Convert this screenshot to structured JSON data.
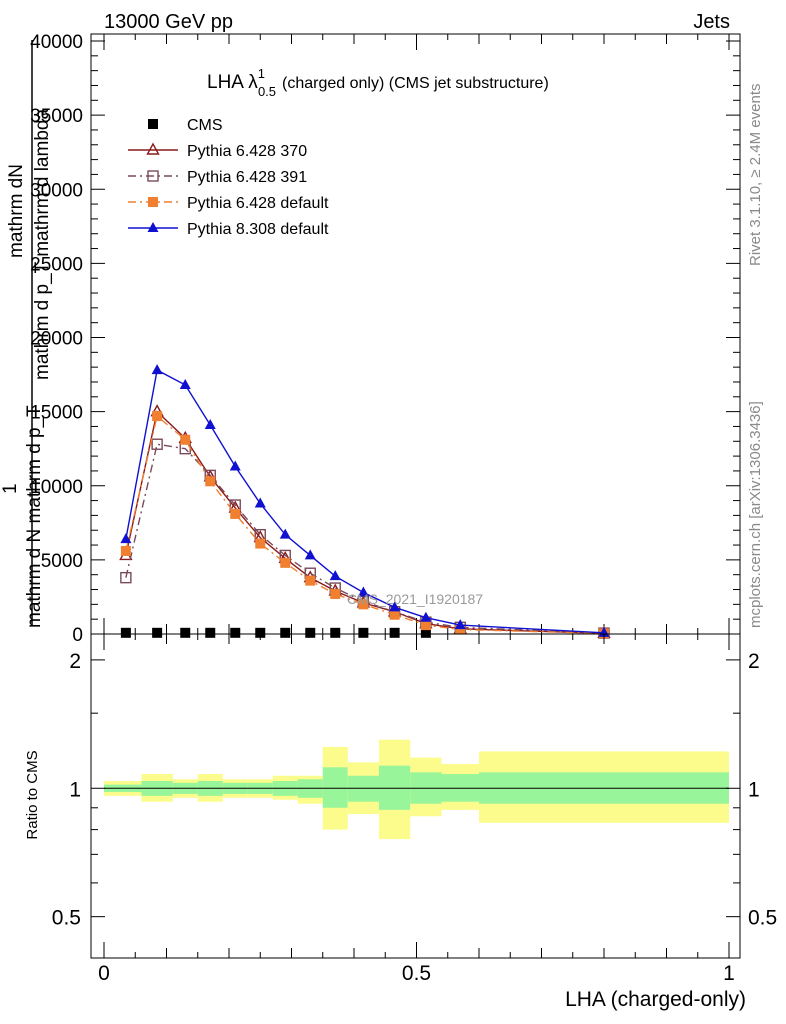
{
  "header": {
    "left": "13000 GeV pp",
    "right": "Jets"
  },
  "side_notes": {
    "rivet": "Rivet 3.1.10, ≥ 2.4M events",
    "mcplots": "mcplots.cern.ch [arXiv:1306.3436]"
  },
  "watermark": "CMS_2021_I1920187",
  "chart_data": [
    {
      "type": "line",
      "title": "LHA λ",
      "title_superscript": "1",
      "title_subscript": "0.5",
      "title_suffix": "(charged only) (CMS jet substructure)",
      "ylabel_garbled": [
        "mathrm dN",
        "mathrm d p_T mathrm d lambda",
        "1",
        "mathrm d N mathrm d p_T"
      ],
      "ylim": [
        0,
        40000
      ],
      "yticks": [
        "0",
        "5000",
        "10000",
        "15000",
        "20000",
        "25000",
        "30000",
        "35000",
        "40000"
      ],
      "ytick_values": [
        0,
        5000,
        10000,
        15000,
        20000,
        25000,
        30000,
        35000,
        40000
      ],
      "xlim": [
        0,
        1
      ],
      "legend_position": "top-left",
      "series": [
        {
          "name": "CMS",
          "color": "#000000",
          "marker": "square-filled",
          "line": "none",
          "x": [
            0.035,
            0.085,
            0.13,
            0.17,
            0.21,
            0.25,
            0.29,
            0.33,
            0.37,
            0.415,
            0.465,
            0.515
          ],
          "values": [
            80,
            80,
            80,
            80,
            80,
            80,
            80,
            80,
            80,
            80,
            80,
            80
          ]
        },
        {
          "name": "Pythia 6.428 370",
          "color": "#8b1a1a",
          "marker": "triangle-open",
          "line": "solid",
          "x": [
            0.035,
            0.085,
            0.13,
            0.17,
            0.21,
            0.25,
            0.29,
            0.33,
            0.37,
            0.415,
            0.465,
            0.515,
            0.57,
            0.8
          ],
          "values": [
            5300,
            15000,
            13200,
            10600,
            8500,
            6500,
            5100,
            3800,
            2900,
            2100,
            1500,
            700,
            350,
            50
          ]
        },
        {
          "name": "Pythia 6.428 391",
          "color": "#7a4a5a",
          "marker": "square-open",
          "line": "dashdot",
          "x": [
            0.035,
            0.085,
            0.13,
            0.17,
            0.21,
            0.25,
            0.29,
            0.33,
            0.37,
            0.415,
            0.465,
            0.515,
            0.57,
            0.8
          ],
          "values": [
            3800,
            12800,
            12500,
            10700,
            8700,
            6700,
            5300,
            4100,
            3100,
            2200,
            1500,
            800,
            450,
            60
          ]
        },
        {
          "name": "Pythia 6.428 default",
          "color": "#f08030",
          "marker": "square-filled",
          "line": "dashdot",
          "x": [
            0.035,
            0.085,
            0.13,
            0.17,
            0.21,
            0.25,
            0.29,
            0.33,
            0.37,
            0.415,
            0.465,
            0.515,
            0.57,
            0.8
          ],
          "values": [
            5600,
            14700,
            13100,
            10300,
            8100,
            6100,
            4800,
            3600,
            2700,
            2000,
            1300,
            600,
            300,
            40
          ]
        },
        {
          "name": "Pythia 8.308 default",
          "color": "#1010d0",
          "marker": "triangle-filled",
          "line": "solid",
          "x": [
            0.035,
            0.085,
            0.13,
            0.17,
            0.21,
            0.25,
            0.29,
            0.33,
            0.37,
            0.415,
            0.465,
            0.515,
            0.57,
            0.8
          ],
          "values": [
            6400,
            17800,
            16800,
            14100,
            11300,
            8800,
            6700,
            5300,
            3900,
            2800,
            1800,
            1100,
            600,
            80
          ]
        }
      ]
    },
    {
      "type": "area",
      "ylabel": "Ratio to CMS",
      "xlabel": "LHA (charged-only)",
      "xlim": [
        0,
        1
      ],
      "xticks": [
        "0",
        "0.5",
        "1"
      ],
      "xtick_values": [
        0,
        0.5,
        1
      ],
      "yticks": [
        "0.5",
        "1",
        "2"
      ],
      "ytick_values": [
        0.5,
        1,
        2
      ],
      "ylim": [
        0.4,
        2.3
      ],
      "reference_line": 1,
      "bands": {
        "bin_edges": [
          0,
          0.06,
          0.11,
          0.15,
          0.19,
          0.23,
          0.27,
          0.31,
          0.35,
          0.39,
          0.44,
          0.49,
          0.54,
          0.6,
          1.0
        ],
        "inner_low": [
          0.98,
          0.96,
          0.97,
          0.96,
          0.97,
          0.97,
          0.96,
          0.95,
          0.9,
          0.93,
          0.89,
          0.92,
          0.93,
          0.92
        ],
        "inner_high": [
          1.02,
          1.04,
          1.03,
          1.04,
          1.03,
          1.03,
          1.04,
          1.05,
          1.12,
          1.07,
          1.13,
          1.09,
          1.08,
          1.09
        ],
        "outer_low": [
          0.96,
          0.93,
          0.95,
          0.93,
          0.95,
          0.95,
          0.94,
          0.92,
          0.8,
          0.87,
          0.76,
          0.86,
          0.89,
          0.83
        ],
        "outer_high": [
          1.04,
          1.08,
          1.05,
          1.08,
          1.05,
          1.05,
          1.07,
          1.07,
          1.25,
          1.15,
          1.3,
          1.18,
          1.14,
          1.22
        ],
        "inner_color": "#99f599",
        "outer_color": "#fcfc8c"
      }
    }
  ]
}
